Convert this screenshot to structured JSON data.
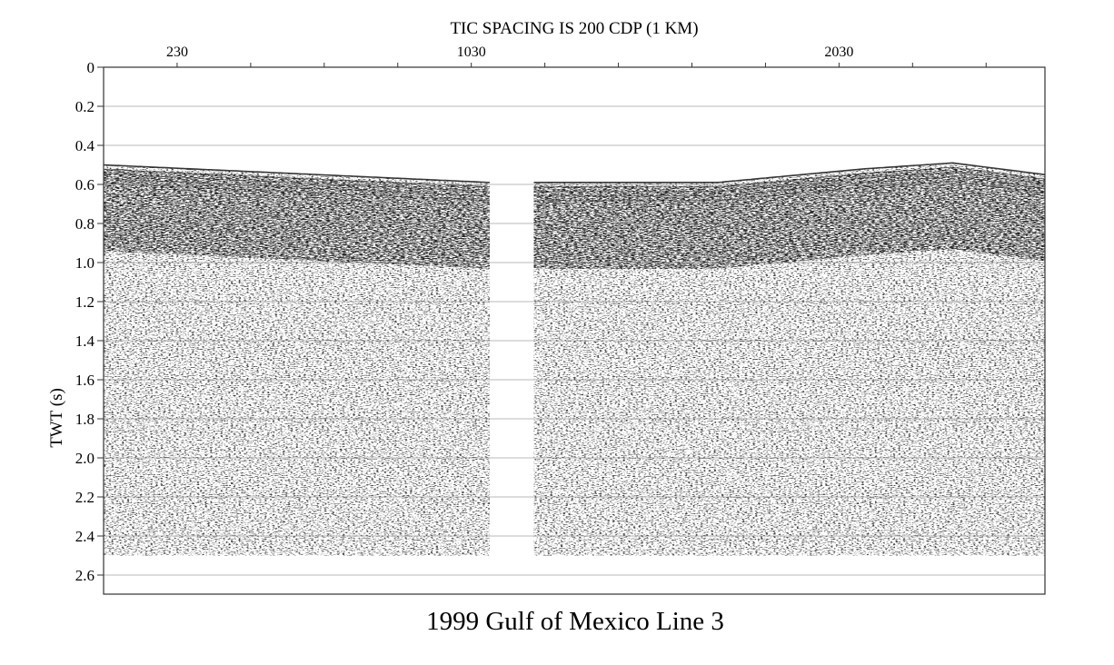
{
  "chart_data": {
    "type": "seismic-section",
    "top_title": "TIC SPACING IS 200 CDP (1 KM)",
    "bottom_title": "1999 Gulf of Mexico Line 3",
    "ylabel": "TWT (s)",
    "ylim": [
      0,
      2.7
    ],
    "y_reversed": true,
    "y_ticks": [
      "0",
      "0.2",
      "0.4",
      "0.6",
      "0.8",
      "1.0",
      "1.2",
      "1.4",
      "1.6",
      "1.8",
      "2.0",
      "2.2",
      "2.4",
      "2.6"
    ],
    "y_tick_values": [
      0,
      0.2,
      0.4,
      0.6,
      0.8,
      1.0,
      1.2,
      1.4,
      1.6,
      1.8,
      2.0,
      2.2,
      2.4,
      2.6
    ],
    "xlim": [
      30,
      2590
    ],
    "x_major_labels": [
      {
        "cdp": 230,
        "label": "230"
      },
      {
        "cdp": 1030,
        "label": "1030"
      },
      {
        "cdp": 2030,
        "label": "2030"
      }
    ],
    "x_tick_cdps": [
      230,
      430,
      630,
      830,
      1030,
      1230,
      1430,
      1630,
      1830,
      2030,
      2230,
      2430
    ],
    "data_gap_cdp": [
      1080,
      1200
    ],
    "data_end_twt": 2.5,
    "seafloor": [
      {
        "cdp": 30,
        "twt": 0.5
      },
      {
        "cdp": 1080,
        "twt": 0.59
      },
      {
        "cdp": 1200,
        "twt": 0.59
      },
      {
        "cdp": 1700,
        "twt": 0.59
      },
      {
        "cdp": 2100,
        "twt": 0.52
      },
      {
        "cdp": 2340,
        "twt": 0.49
      },
      {
        "cdp": 2590,
        "twt": 0.55
      }
    ],
    "colors": {
      "trace": "#1a1a1a",
      "grid": "#888888",
      "axis": "#333333"
    }
  }
}
